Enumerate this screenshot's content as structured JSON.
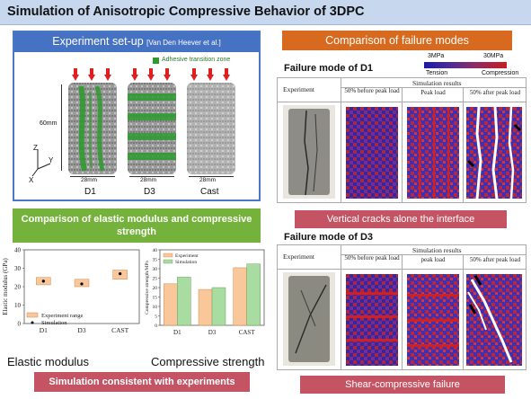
{
  "title": "Simulation of Anisotropic Compressive Behavior of 3DPC",
  "experiment": {
    "header": "Experiment  set-up",
    "reference": "[Van Den Heever et al.]",
    "legend_label": "Adhesive transition zone",
    "height_label": "60mm",
    "width_label": "28mm",
    "axes": {
      "z": "Z",
      "y": "Y",
      "x": "X"
    },
    "specimens": [
      "D1",
      "D3",
      "Cast"
    ]
  },
  "comparison_modulus_header": "Comparison of elastic modulus and compressive strength",
  "elastic_chart": {
    "ylabel": "Elastic modulus (GPa)",
    "yticks": [
      "0",
      "10",
      "20",
      "30",
      "40"
    ],
    "legend_range": "Experiment range",
    "legend_sim": "Simulation",
    "caption": "Elastic modulus"
  },
  "strength_chart": {
    "ylabel": "Compressive strength/MPa",
    "yticks": [
      "0",
      "5",
      "10",
      "15",
      "20",
      "25",
      "30",
      "35",
      "40"
    ],
    "legend_exp": "Experiment",
    "legend_sim": "Simulation",
    "caption": "Compressive strength"
  },
  "chart_data": [
    {
      "type": "bar",
      "categories": [
        "D1",
        "D3",
        "CAST"
      ],
      "ylabel": "Elastic modulus (GPa)",
      "ylim": [
        0,
        40
      ],
      "series": [
        {
          "name": "Experiment range",
          "values": [
            [
              21,
              25
            ],
            [
              20,
              24
            ],
            [
              24,
              29
            ]
          ]
        },
        {
          "name": "Simulation",
          "values": [
            23,
            21.5,
            27
          ]
        }
      ]
    },
    {
      "type": "bar",
      "categories": [
        "D1",
        "D3",
        "CAST"
      ],
      "ylabel": "Compressive strength/MPa",
      "ylim": [
        0,
        40
      ],
      "series": [
        {
          "name": "Experiment",
          "values": [
            22,
            19,
            30.5
          ]
        },
        {
          "name": "Simulation",
          "values": [
            25.5,
            20,
            32.5
          ]
        }
      ]
    }
  ],
  "consistent_banner": "Simulation consistent with experiments",
  "failure": {
    "header": "Comparison of failure modes",
    "colorbar": {
      "min": "3MPa",
      "max": "30MPa",
      "tension": "Tension",
      "compression": "Compression"
    },
    "d1": {
      "title": "Failure mode of D1",
      "experiment": "Experiment",
      "sim_header": "Simulation results",
      "cols": [
        "50% before peak load",
        "Peak load",
        "50% after peak load"
      ],
      "banner": "Vertical cracks alone the interface"
    },
    "d3": {
      "title": "Failure mode of D3",
      "experiment": "Experiment",
      "sim_header": "Simulation results",
      "cols": [
        "50% before peak load",
        "peak load",
        "50% after peak load"
      ],
      "banner": "Shear-compressive failure"
    }
  },
  "colors": {
    "title_bg": "#c6d7ee",
    "blue": "#4672c4",
    "green": "#74b23b",
    "orange": "#d86a1f",
    "rose": "#c45464",
    "bar_exp": "#f9c79a",
    "bar_sim": "#a8dca0"
  }
}
